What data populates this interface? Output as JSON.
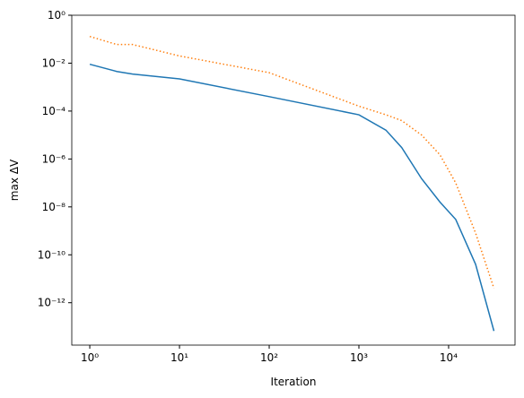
{
  "chart_data": {
    "type": "line",
    "xlabel": "Iteration",
    "ylabel": "max ΔV",
    "xscale": "log",
    "yscale": "log",
    "x": [
      1,
      2,
      3,
      10,
      100,
      1000,
      2000,
      3000,
      5000,
      8000,
      12000,
      20000,
      32000
    ],
    "series": [
      {
        "name": "blue",
        "color": "#1f77b4",
        "dash": "solid",
        "values": [
          0.009,
          0.0045,
          0.0035,
          0.0022,
          0.0004,
          7e-05,
          1.6e-05,
          3e-06,
          1.5e-07,
          1.6e-08,
          3e-09,
          4e-11,
          6.6e-14
        ]
      },
      {
        "name": "orange",
        "color": "#ff7f0e",
        "dash": "dotted",
        "values": [
          0.13,
          0.06,
          0.06,
          0.02,
          0.004,
          0.00016,
          7e-05,
          4e-05,
          1e-05,
          1.5e-06,
          1e-07,
          8e-10,
          4e-12
        ]
      }
    ],
    "xlim": [
      0.63,
      55000
    ],
    "ylim": [
      1.7e-14,
      1
    ],
    "xticks": [
      {
        "value": 1,
        "label": "10⁰"
      },
      {
        "value": 10,
        "label": "10¹"
      },
      {
        "value": 100,
        "label": "10²"
      },
      {
        "value": 1000,
        "label": "10³"
      },
      {
        "value": 10000,
        "label": "10⁴"
      }
    ],
    "yticks": [
      {
        "value": 1,
        "label": "10⁰"
      },
      {
        "value": 0.01,
        "label": "10⁻²"
      },
      {
        "value": 0.0001,
        "label": "10⁻⁴"
      },
      {
        "value": 1e-06,
        "label": "10⁻⁶"
      },
      {
        "value": 1e-08,
        "label": "10⁻⁸"
      },
      {
        "value": 1e-10,
        "label": "10⁻¹⁰"
      },
      {
        "value": 1e-12,
        "label": "10⁻¹²"
      }
    ]
  }
}
